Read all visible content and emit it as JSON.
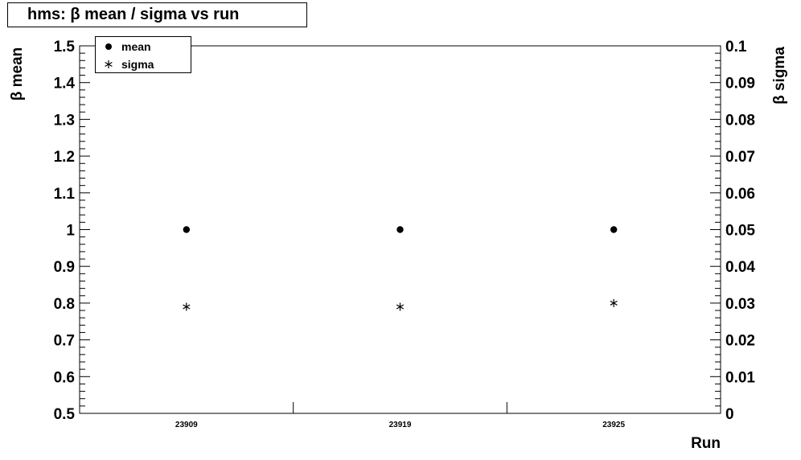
{
  "title": "hms:  β mean / sigma vs run",
  "chart_data": {
    "type": "scatter",
    "xlabel": "Run",
    "ylabel": "β mean",
    "y2label": "β sigma",
    "categories": [
      "23909",
      "23919",
      "23925"
    ],
    "ylim": [
      0.5,
      1.5
    ],
    "y2lim": [
      0,
      0.1
    ],
    "yticks": [
      "0.5",
      "0.6",
      "0.7",
      "0.8",
      "0.9",
      "1",
      "1.1",
      "1.2",
      "1.3",
      "1.4",
      "1.5"
    ],
    "y2ticks": [
      "0",
      "0.01",
      "0.02",
      "0.03",
      "0.04",
      "0.05",
      "0.06",
      "0.07",
      "0.08",
      "0.09",
      "0.1"
    ],
    "series": [
      {
        "name": "mean",
        "axis": "left",
        "marker": "circle",
        "values": [
          1.0,
          1.0,
          1.0
        ]
      },
      {
        "name": "sigma",
        "axis": "right",
        "marker": "star",
        "values": [
          0.029,
          0.029,
          0.03
        ]
      }
    ],
    "legend": "top-left",
    "grid": false
  }
}
